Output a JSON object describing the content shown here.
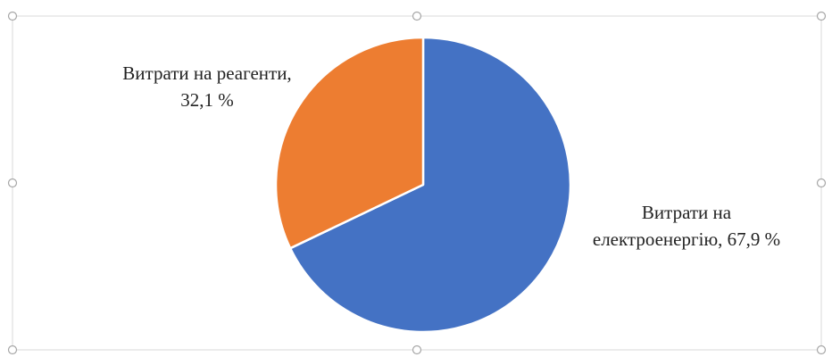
{
  "chart_data": {
    "type": "pie",
    "title": "",
    "slices": [
      {
        "label": "Витрати на електроенергію",
        "value": 67.9,
        "unit": "%",
        "color": "#4472C4",
        "label_lines": [
          "Витрати на",
          "електроенергію, 67,9 %"
        ]
      },
      {
        "label": "Витрати на реагенти",
        "value": 32.1,
        "unit": "%",
        "color": "#ED7D31",
        "label_lines": [
          "Витрати на реагенти,",
          "32,1 %"
        ]
      }
    ],
    "start_angle_deg": 0,
    "direction": "clockwise",
    "slice_border_color": "#FFFFFF",
    "legend": "none"
  },
  "frame": {
    "border_color": "#D9D9D9",
    "handle_color": "#A6A6A6",
    "selected": true
  }
}
